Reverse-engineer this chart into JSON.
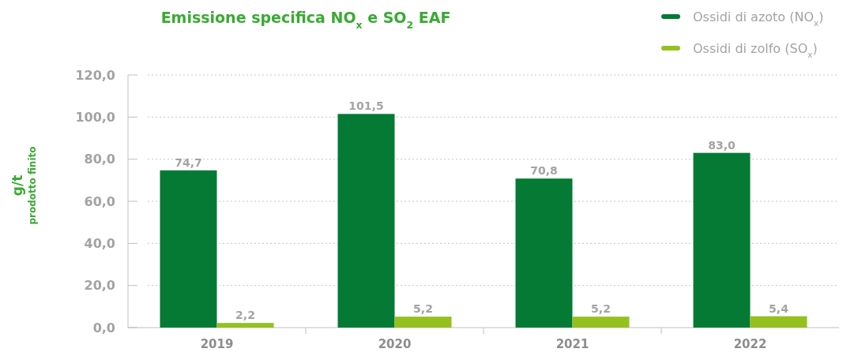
{
  "chart_data": {
    "type": "bar",
    "title": "Emissione specifica NO$_{x}$ e SO$_{2}$ EAF",
    "ylabel": "g/t\nprodotto finito",
    "categories": [
      "2019",
      "2020",
      "2021",
      "2022"
    ],
    "series": [
      {
        "name": "Ossidi di azoto (NO$_{x}$)",
        "color": "#047a35",
        "values": [
          74.7,
          101.5,
          70.8,
          83.0
        ],
        "value_labels": [
          "74,7",
          "101,5",
          "70,8",
          "83,0"
        ]
      },
      {
        "name": "Ossidi di zolfo (SO$_{x}$)",
        "color": "#95c11f",
        "values": [
          2.2,
          5.2,
          5.2,
          5.4
        ],
        "value_labels": [
          "2,2",
          "5,2",
          "5,2",
          "5,4"
        ]
      }
    ],
    "ylim": [
      0,
      120
    ],
    "yticks": [
      {
        "value": 0,
        "label": "0,0"
      },
      {
        "value": 20,
        "label": "20,0"
      },
      {
        "value": 40,
        "label": "40,0"
      },
      {
        "value": 60,
        "label": "60,0"
      },
      {
        "value": 80,
        "label": "80,0"
      },
      {
        "value": 100,
        "label": "100,0"
      },
      {
        "value": 120,
        "label": "120,0"
      }
    ],
    "grid": "y",
    "legend": "top right"
  }
}
